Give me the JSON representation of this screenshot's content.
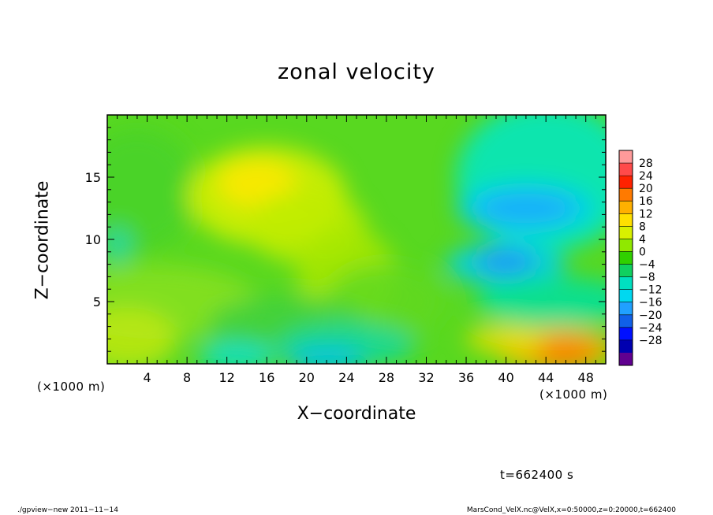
{
  "chart_data": {
    "type": "heatmap",
    "title": "zonal velocity",
    "xlabel": "X−coordinate",
    "ylabel": "Z−coordinate",
    "x_unit_label": "(×1000 m)",
    "x_unit_label_right": "(×1000 m)",
    "xlim": [
      0,
      50
    ],
    "ylim": [
      0,
      20
    ],
    "x_ticks": [
      4,
      8,
      12,
      16,
      20,
      24,
      28,
      32,
      36,
      40,
      44,
      48
    ],
    "x_tick_labels": [
      "4",
      "8",
      "12",
      "16",
      "20",
      "24",
      "28",
      "32",
      "36",
      "40",
      "44",
      "48"
    ],
    "y_ticks": [
      5,
      10,
      15
    ],
    "y_tick_labels": [
      "5",
      "10",
      "15"
    ],
    "grid": false,
    "colorbar": {
      "placement": "right",
      "levels": [
        28,
        24,
        20,
        16,
        12,
        8,
        4,
        0,
        -4,
        -8,
        -12,
        -16,
        -20,
        -24,
        -28
      ],
      "labels": [
        "28",
        "24",
        "20",
        "16",
        "12",
        "8",
        "4",
        "0",
        "−4",
        "−8",
        "−12",
        "−16",
        "−20",
        "−24",
        "−28"
      ],
      "colors": [
        "#ff9a9a",
        "#ff4a4a",
        "#ff2200",
        "#ff7a00",
        "#ffb000",
        "#ffe000",
        "#d8f000",
        "#90e800",
        "#30d000",
        "#10d060",
        "#00e0c0",
        "#00d8f0",
        "#20a0ff",
        "#1060e8",
        "#0010ff",
        "#0000b0",
        "#600090"
      ]
    },
    "features": [
      {
        "x": 15,
        "z": 14,
        "value": 10,
        "label": "positive maximum upper left"
      },
      {
        "x": 21,
        "z": 10,
        "value": 6,
        "label": "positive band"
      },
      {
        "x": 42,
        "z": 12.5,
        "value": -12,
        "label": "negative band upper right"
      },
      {
        "x": 40,
        "z": 8,
        "value": -12,
        "label": "negative band mid right"
      },
      {
        "x": 45,
        "z": 1,
        "value": 14,
        "label": "positive near surface right"
      },
      {
        "x": 22,
        "z": 0.5,
        "value": -8,
        "label": "negative near surface center"
      }
    ],
    "annotation": "t=662400 s"
  },
  "footer": {
    "left": "./gpview−new   2011−11−14",
    "right": "MarsCond_VelX.nc@VelX,x=0:50000,z=0:20000,t=662400"
  }
}
